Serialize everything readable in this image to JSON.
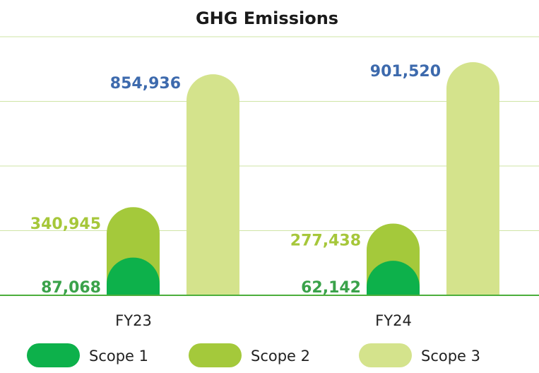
{
  "chart_data": {
    "type": "bar",
    "title": "GHG Emissions",
    "categories": [
      "FY23",
      "FY24"
    ],
    "series": [
      {
        "name": "Scope 1",
        "values": [
          87068,
          62142
        ],
        "labels": [
          "87,068",
          "62,142"
        ]
      },
      {
        "name": "Scope 2",
        "values": [
          340945,
          277438
        ],
        "labels": [
          "340,945",
          "277,438"
        ]
      },
      {
        "name": "Scope 3",
        "values": [
          854936,
          901520
        ],
        "labels": [
          "854,936",
          "901,520"
        ]
      }
    ],
    "ylim": [
      0,
      1000000
    ],
    "grid": true,
    "legend": "bottom",
    "colors": {
      "scope1": "#0db14b",
      "scope2": "#a4c93b",
      "scope3": "#d4e38c",
      "scope1_label": "#3aa24a",
      "scope2_label": "#a6c73a",
      "scope3_label": "#3d6aad",
      "grid": "#cfe4a6",
      "axis": "#4cae3c"
    }
  }
}
